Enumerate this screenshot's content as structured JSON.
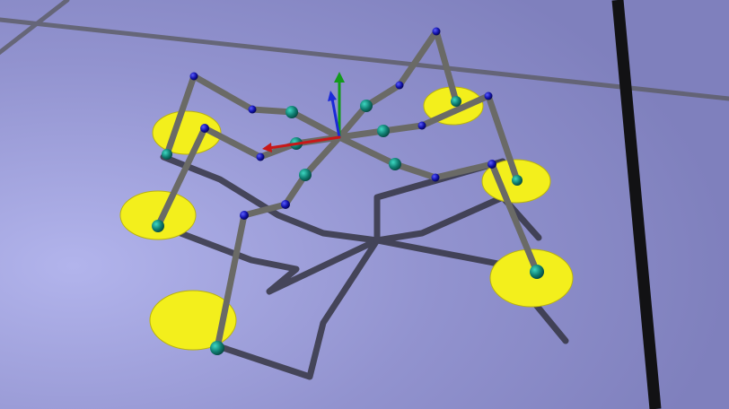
{
  "view": {
    "type": "3d-simulation-viewport",
    "subject": "hexapod-robot",
    "ground_color": "#8e8fc9",
    "foot_marker_color": "#f3ef1c",
    "leg_color": "#6a6a66",
    "joint_color_top": "#1010a8",
    "joint_color_knee": "#0f7c70",
    "shadow_color": "#2f2f3a",
    "axes": {
      "x_color": "#c81818",
      "y_color": "#139a1c",
      "z_color": "#1b2ad8"
    },
    "legs": 6,
    "text": []
  }
}
